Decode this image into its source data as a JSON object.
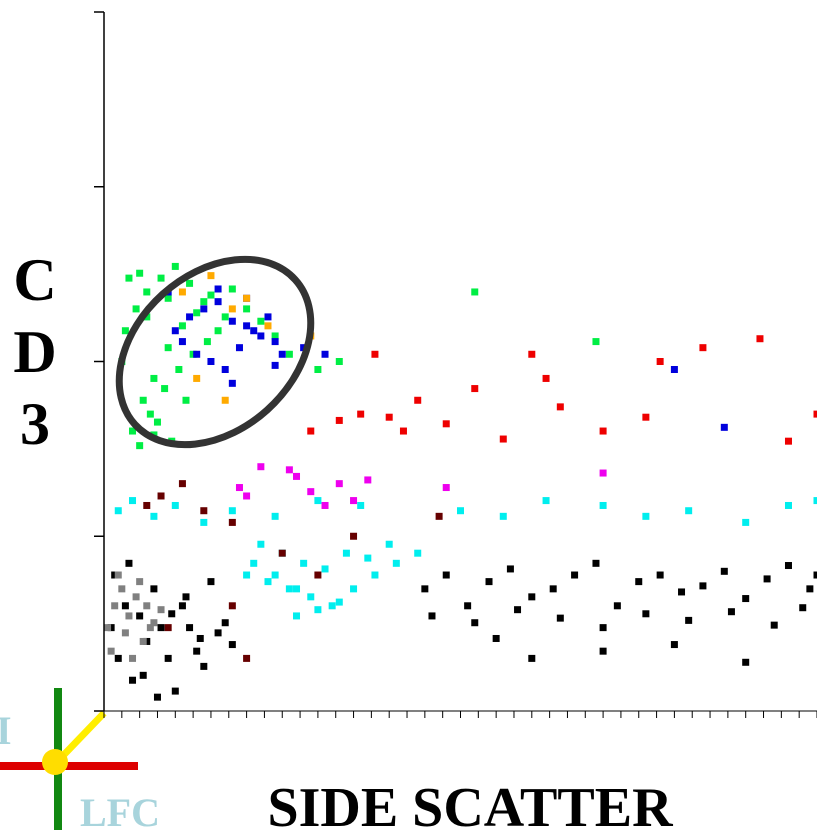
{
  "chart_data": {
    "type": "scatter",
    "xlabel": "SIDE SCATTER",
    "ylabel": [
      "C",
      "D",
      "3"
    ],
    "xlim": [
      0,
      1000
    ],
    "ylim": [
      1,
      10000
    ],
    "log_y": true,
    "xticks": [
      0,
      25,
      50,
      75,
      100,
      125,
      150,
      175,
      200,
      225,
      250,
      275,
      300,
      325,
      350,
      375,
      400,
      425,
      450,
      475,
      500,
      525,
      550,
      575,
      600,
      625,
      650,
      675,
      700,
      725,
      750,
      775,
      800,
      825,
      850,
      875,
      900,
      925,
      950,
      975,
      1000
    ],
    "yticks": [
      1,
      10,
      100,
      1000,
      10000
    ],
    "series": [
      {
        "color": "#00ee44",
        "x": [
          30,
          45,
          60,
          25,
          80,
          100,
          120,
          140,
          55,
          70,
          90,
          110,
          130,
          150,
          170,
          40,
          65,
          85,
          105,
          125,
          145,
          35,
          50,
          75,
          95,
          115,
          160,
          180,
          200,
          220,
          240,
          260,
          300,
          330,
          520,
          690,
          50,
          70,
          60,
          90
        ],
        "values": [
          150,
          200,
          250,
          100,
          300,
          350,
          280,
          220,
          60,
          80,
          120,
          160,
          190,
          240,
          180,
          40,
          50,
          70,
          90,
          110,
          130,
          300,
          320,
          45,
          35,
          60,
          150,
          260,
          200,
          170,
          140,
          110,
          90,
          100,
          250,
          130,
          33,
          38,
          180,
          230
        ]
      },
      {
        "color": "#0000dd",
        "x": [
          100,
          120,
          140,
          160,
          180,
          200,
          220,
          240,
          130,
          150,
          170,
          190,
          210,
          230,
          250,
          280,
          310,
          90,
          110,
          160,
          200,
          240,
          800,
          870,
          180
        ],
        "values": [
          150,
          180,
          200,
          220,
          170,
          160,
          140,
          130,
          110,
          100,
          90,
          120,
          150,
          180,
          110,
          120,
          110,
          250,
          130,
          260,
          230,
          95,
          90,
          42,
          75
        ]
      },
      {
        "color": "#ffaa00",
        "x": [
          110,
          150,
          180,
          200,
          230,
          130,
          290,
          170
        ],
        "values": [
          250,
          310,
          200,
          230,
          160,
          80,
          140,
          60
        ]
      },
      {
        "color": "#ee0000",
        "x": [
          380,
          440,
          360,
          420,
          480,
          520,
          560,
          640,
          700,
          780,
          840,
          920,
          960,
          1000,
          290,
          330,
          400,
          600,
          620,
          760
        ],
        "values": [
          110,
          60,
          50,
          40,
          44,
          70,
          36,
          55,
          40,
          100,
          120,
          135,
          35,
          50,
          40,
          46,
          48,
          110,
          80,
          48
        ]
      },
      {
        "color": "#ee00ee",
        "x": [
          270,
          290,
          330,
          350,
          200,
          220,
          370,
          480,
          700,
          260,
          310,
          190
        ],
        "values": [
          22,
          18,
          20,
          16,
          17,
          25,
          21,
          19,
          23,
          24,
          15,
          19
        ]
      },
      {
        "color": "#00eeee",
        "x": [
          20,
          40,
          70,
          100,
          140,
          180,
          240,
          300,
          360,
          500,
          560,
          620,
          700,
          760,
          820,
          900,
          960,
          1000,
          220,
          250,
          280,
          310,
          340,
          370,
          400,
          200,
          230,
          260,
          290,
          320,
          350,
          380,
          410,
          440,
          270,
          300,
          330,
          210,
          240,
          270
        ],
        "values": [
          14,
          16,
          13,
          15,
          12,
          14,
          13,
          16,
          15,
          14,
          13,
          16,
          15,
          13,
          14,
          12,
          15,
          16,
          9,
          8,
          7,
          6.5,
          8,
          7.5,
          9,
          6,
          5.5,
          5,
          4.5,
          4,
          5,
          6,
          7,
          8,
          3.5,
          3.8,
          4.2,
          7,
          6,
          5
        ]
      },
      {
        "color": "#000000",
        "x": [
          10,
          20,
          30,
          40,
          50,
          60,
          70,
          80,
          90,
          100,
          110,
          120,
          130,
          140,
          150,
          160,
          170,
          180,
          15,
          35,
          55,
          75,
          95,
          115,
          135,
          450,
          480,
          510,
          540,
          570,
          600,
          630,
          660,
          690,
          720,
          750,
          780,
          810,
          840,
          870,
          900,
          930,
          960,
          990,
          1000,
          460,
          520,
          580,
          640,
          700,
          760,
          820,
          880,
          940,
          980,
          600,
          700,
          800,
          900,
          550
        ],
        "values": [
          3,
          2,
          4,
          1.5,
          3.5,
          2.5,
          5,
          3,
          2,
          1.3,
          4,
          3,
          2.2,
          1.8,
          5.5,
          2.8,
          3.2,
          2.4,
          6,
          7,
          1.6,
          1.2,
          3.6,
          4.5,
          2.6,
          5,
          6,
          4,
          5.5,
          6.5,
          4.5,
          5,
          6,
          7,
          4,
          5.5,
          6,
          4.8,
          5.2,
          6.3,
          4.4,
          5.7,
          6.8,
          5,
          6,
          3.5,
          3.2,
          3.8,
          3.4,
          3,
          3.6,
          3.3,
          3.7,
          3.1,
          3.9,
          2,
          2.2,
          2.4,
          1.9,
          2.6
        ]
      },
      {
        "color": "#660000",
        "x": [
          80,
          110,
          140,
          180,
          200,
          250,
          180,
          470,
          300,
          350,
          60,
          90
        ],
        "values": [
          17,
          20,
          14,
          12,
          2,
          8,
          4,
          13,
          6,
          10,
          15,
          3
        ]
      },
      {
        "color": "#808080",
        "x": [
          5,
          15,
          25,
          35,
          45,
          55,
          65,
          10,
          30,
          50,
          20,
          40,
          60,
          70,
          80
        ],
        "values": [
          3,
          4,
          5,
          3.5,
          4.5,
          2.5,
          3,
          2.2,
          2.8,
          5.5,
          6,
          2,
          4,
          3.2,
          3.8
        ]
      }
    ]
  },
  "logo": {
    "left": "I",
    "bottom": "LFC"
  }
}
